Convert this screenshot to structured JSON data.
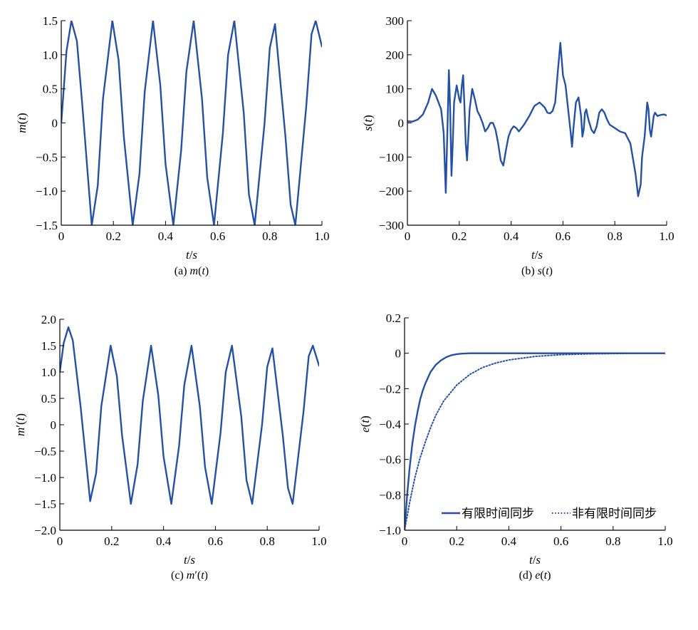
{
  "chart_data": [
    {
      "panel": "a",
      "type": "line",
      "caption": "(a) m(t)",
      "xlabel": "t/s",
      "ylabel": "m(t)",
      "xlim": [
        0,
        1.0
      ],
      "ylim": [
        -1.5,
        1.5
      ],
      "xticks": [
        0,
        0.2,
        0.4,
        0.6,
        0.8,
        1.0
      ],
      "xtick_labels": [
        "0",
        "0.2",
        "0.4",
        "0.6",
        "0.8",
        "1.0"
      ],
      "yticks": [
        -1.5,
        -1.0,
        -0.5,
        0,
        0.5,
        1.0,
        1.5
      ],
      "ytick_labels": [
        "−1.5",
        "−1.0",
        "−0.5",
        "0",
        "0.5",
        "1.0",
        "1.5"
      ],
      "grid": false,
      "color": "#2451a6",
      "series": [
        {
          "style": "solid",
          "x": [
            0,
            0.02,
            0.039,
            0.06,
            0.08,
            0.117,
            0.14,
            0.16,
            0.196,
            0.22,
            0.24,
            0.274,
            0.3,
            0.32,
            0.352,
            0.38,
            0.4,
            0.43,
            0.46,
            0.48,
            0.508,
            0.54,
            0.56,
            0.586,
            0.62,
            0.64,
            0.664,
            0.7,
            0.72,
            0.742,
            0.78,
            0.8,
            0.82,
            0.86,
            0.88,
            0.898,
            0.94,
            0.96,
            0.976,
            1.0
          ],
          "y": [
            0,
            1.05,
            1.5,
            1.2,
            0.3,
            -1.5,
            -0.92,
            0.35,
            1.5,
            0.92,
            -0.2,
            -1.5,
            -0.75,
            0.45,
            1.5,
            0.55,
            -0.6,
            -1.5,
            -0.4,
            0.75,
            1.5,
            0.35,
            -0.8,
            -1.5,
            -0.15,
            1.0,
            1.5,
            0.15,
            -1.05,
            -1.5,
            0.0,
            1.1,
            1.45,
            -0.2,
            -1.2,
            -1.5,
            0.25,
            1.3,
            1.5,
            1.12
          ]
        }
      ]
    },
    {
      "panel": "b",
      "type": "line",
      "caption": "(b) s(t)",
      "xlabel": "t/s",
      "ylabel": "s(t)",
      "xlim": [
        0,
        1.0
      ],
      "ylim": [
        -300,
        300
      ],
      "xticks": [
        0,
        0.2,
        0.4,
        0.6,
        0.8,
        1.0
      ],
      "xtick_labels": [
        "0",
        "0.2",
        "0.4",
        "0.6",
        "0.8",
        "1.0"
      ],
      "yticks": [
        -300,
        -200,
        -100,
        0,
        100,
        200,
        300
      ],
      "ytick_labels": [
        "−300",
        "−200",
        "−100",
        "0",
        "100",
        "200",
        "300"
      ],
      "grid": false,
      "color": "#2451a6",
      "series": [
        {
          "style": "solid",
          "x": [
            0,
            0.02,
            0.04,
            0.06,
            0.08,
            0.095,
            0.11,
            0.13,
            0.14,
            0.148,
            0.155,
            0.16,
            0.165,
            0.17,
            0.175,
            0.18,
            0.19,
            0.2,
            0.205,
            0.21,
            0.215,
            0.22,
            0.225,
            0.23,
            0.235,
            0.24,
            0.25,
            0.26,
            0.27,
            0.28,
            0.29,
            0.3,
            0.31,
            0.32,
            0.33,
            0.34,
            0.35,
            0.36,
            0.37,
            0.38,
            0.39,
            0.4,
            0.41,
            0.42,
            0.43,
            0.44,
            0.45,
            0.47,
            0.49,
            0.51,
            0.53,
            0.54,
            0.55,
            0.56,
            0.57,
            0.58,
            0.59,
            0.6,
            0.61,
            0.62,
            0.63,
            0.635,
            0.64,
            0.65,
            0.66,
            0.67,
            0.675,
            0.68,
            0.685,
            0.69,
            0.695,
            0.7,
            0.71,
            0.72,
            0.73,
            0.74,
            0.75,
            0.76,
            0.77,
            0.78,
            0.79,
            0.8,
            0.81,
            0.82,
            0.84,
            0.86,
            0.88,
            0.89,
            0.9,
            0.905,
            0.91,
            0.915,
            0.92,
            0.925,
            0.93,
            0.935,
            0.94,
            0.945,
            0.95,
            0.955,
            0.96,
            0.965,
            0.97,
            0.98,
            0.99,
            1.0
          ],
          "y": [
            5,
            4,
            10,
            25,
            60,
            100,
            80,
            40,
            -30,
            -205,
            0,
            155,
            40,
            -155,
            -60,
            60,
            110,
            70,
            60,
            110,
            140,
            50,
            -60,
            -110,
            -40,
            40,
            100,
            70,
            35,
            20,
            0,
            -25,
            -15,
            0,
            0,
            -20,
            -60,
            -110,
            -125,
            -80,
            -40,
            -20,
            -10,
            -15,
            -25,
            -15,
            -5,
            20,
            50,
            60,
            45,
            30,
            28,
            35,
            60,
            150,
            235,
            140,
            110,
            40,
            -30,
            -70,
            -20,
            60,
            75,
            20,
            -40,
            -20,
            30,
            40,
            20,
            5,
            -20,
            -30,
            -10,
            30,
            40,
            30,
            10,
            -5,
            -10,
            -15,
            -20,
            -25,
            -30,
            -60,
            -150,
            -215,
            -180,
            -100,
            -70,
            -40,
            10,
            60,
            40,
            -20,
            -40,
            -10,
            20,
            30,
            25,
            20,
            22,
            24,
            25,
            22
          ]
        }
      ]
    },
    {
      "panel": "c",
      "type": "line",
      "caption": "(c) m′(t)",
      "xlabel": "t/s",
      "ylabel": "m′(t)",
      "xlim": [
        0,
        1.0
      ],
      "ylim": [
        -2.0,
        2.0
      ],
      "xticks": [
        0,
        0.2,
        0.4,
        0.6,
        0.8,
        1.0
      ],
      "xtick_labels": [
        "0",
        "0.2",
        "0.4",
        "0.6",
        "0.8",
        "1.0"
      ],
      "yticks": [
        -2.0,
        -1.5,
        -1.0,
        -0.5,
        0,
        0.5,
        1.0,
        1.5,
        2.0
      ],
      "ytick_labels": [
        "−2.0",
        "−1.5",
        "−1.0",
        "−0.5",
        "0",
        "0.5",
        "1.0",
        "1.5",
        "2.0"
      ],
      "grid": false,
      "color": "#2451a6",
      "series": [
        {
          "style": "solid",
          "x": [
            0,
            0.015,
            0.033,
            0.05,
            0.08,
            0.117,
            0.14,
            0.16,
            0.196,
            0.22,
            0.24,
            0.274,
            0.3,
            0.32,
            0.352,
            0.38,
            0.4,
            0.43,
            0.46,
            0.48,
            0.508,
            0.54,
            0.56,
            0.586,
            0.62,
            0.64,
            0.664,
            0.7,
            0.72,
            0.742,
            0.78,
            0.8,
            0.82,
            0.86,
            0.88,
            0.898,
            0.94,
            0.96,
            0.976,
            1.0
          ],
          "y": [
            1.0,
            1.55,
            1.85,
            1.6,
            0.35,
            -1.45,
            -0.92,
            0.35,
            1.5,
            0.92,
            -0.2,
            -1.5,
            -0.75,
            0.45,
            1.5,
            0.55,
            -0.6,
            -1.5,
            -0.4,
            0.75,
            1.5,
            0.35,
            -0.8,
            -1.5,
            -0.15,
            1.0,
            1.5,
            0.15,
            -1.05,
            -1.5,
            0.0,
            1.1,
            1.45,
            -0.2,
            -1.2,
            -1.5,
            0.25,
            1.3,
            1.5,
            1.12
          ]
        }
      ]
    },
    {
      "panel": "d",
      "type": "line",
      "caption": "(d) e(t)",
      "xlabel": "t/s",
      "ylabel": "e(t)",
      "xlim": [
        0,
        1.0
      ],
      "ylim": [
        -1.0,
        0.2
      ],
      "xticks": [
        0,
        0.2,
        0.4,
        0.6,
        0.8,
        1.0
      ],
      "xtick_labels": [
        "0",
        "0.2",
        "0.4",
        "0.6",
        "0.8",
        "1.0"
      ],
      "yticks": [
        -1.0,
        -0.8,
        -0.6,
        -0.4,
        -0.2,
        0,
        0.2
      ],
      "ytick_labels": [
        "−1.0",
        "−0.8",
        "−0.6",
        "−0.4",
        "−0.2",
        "0",
        "0.2"
      ],
      "grid": false,
      "color": "#2451a6",
      "legend_position": "bottom-right",
      "series": [
        {
          "name": "有限时间同步",
          "style": "solid",
          "x": [
            0,
            0.01,
            0.02,
            0.03,
            0.04,
            0.05,
            0.06,
            0.07,
            0.08,
            0.1,
            0.12,
            0.14,
            0.16,
            0.18,
            0.2,
            0.22,
            0.25,
            0.3,
            0.4,
            0.6,
            0.8,
            1.0
          ],
          "y": [
            -1.0,
            -0.8,
            -0.64,
            -0.51,
            -0.41,
            -0.33,
            -0.26,
            -0.21,
            -0.17,
            -0.105,
            -0.065,
            -0.04,
            -0.022,
            -0.011,
            -0.005,
            -0.002,
            0,
            0,
            0,
            0,
            0,
            0
          ]
        },
        {
          "name": "非有限时间同步",
          "style": "dotted",
          "x": [
            0,
            0.02,
            0.04,
            0.06,
            0.08,
            0.1,
            0.12,
            0.15,
            0.2,
            0.25,
            0.3,
            0.35,
            0.4,
            0.5,
            0.6,
            0.7,
            0.8,
            0.9,
            1.0
          ],
          "y": [
            -1.0,
            -0.84,
            -0.7,
            -0.59,
            -0.5,
            -0.42,
            -0.35,
            -0.27,
            -0.18,
            -0.12,
            -0.08,
            -0.055,
            -0.038,
            -0.018,
            -0.008,
            -0.004,
            -0.002,
            -0.001,
            0
          ]
        }
      ]
    }
  ]
}
